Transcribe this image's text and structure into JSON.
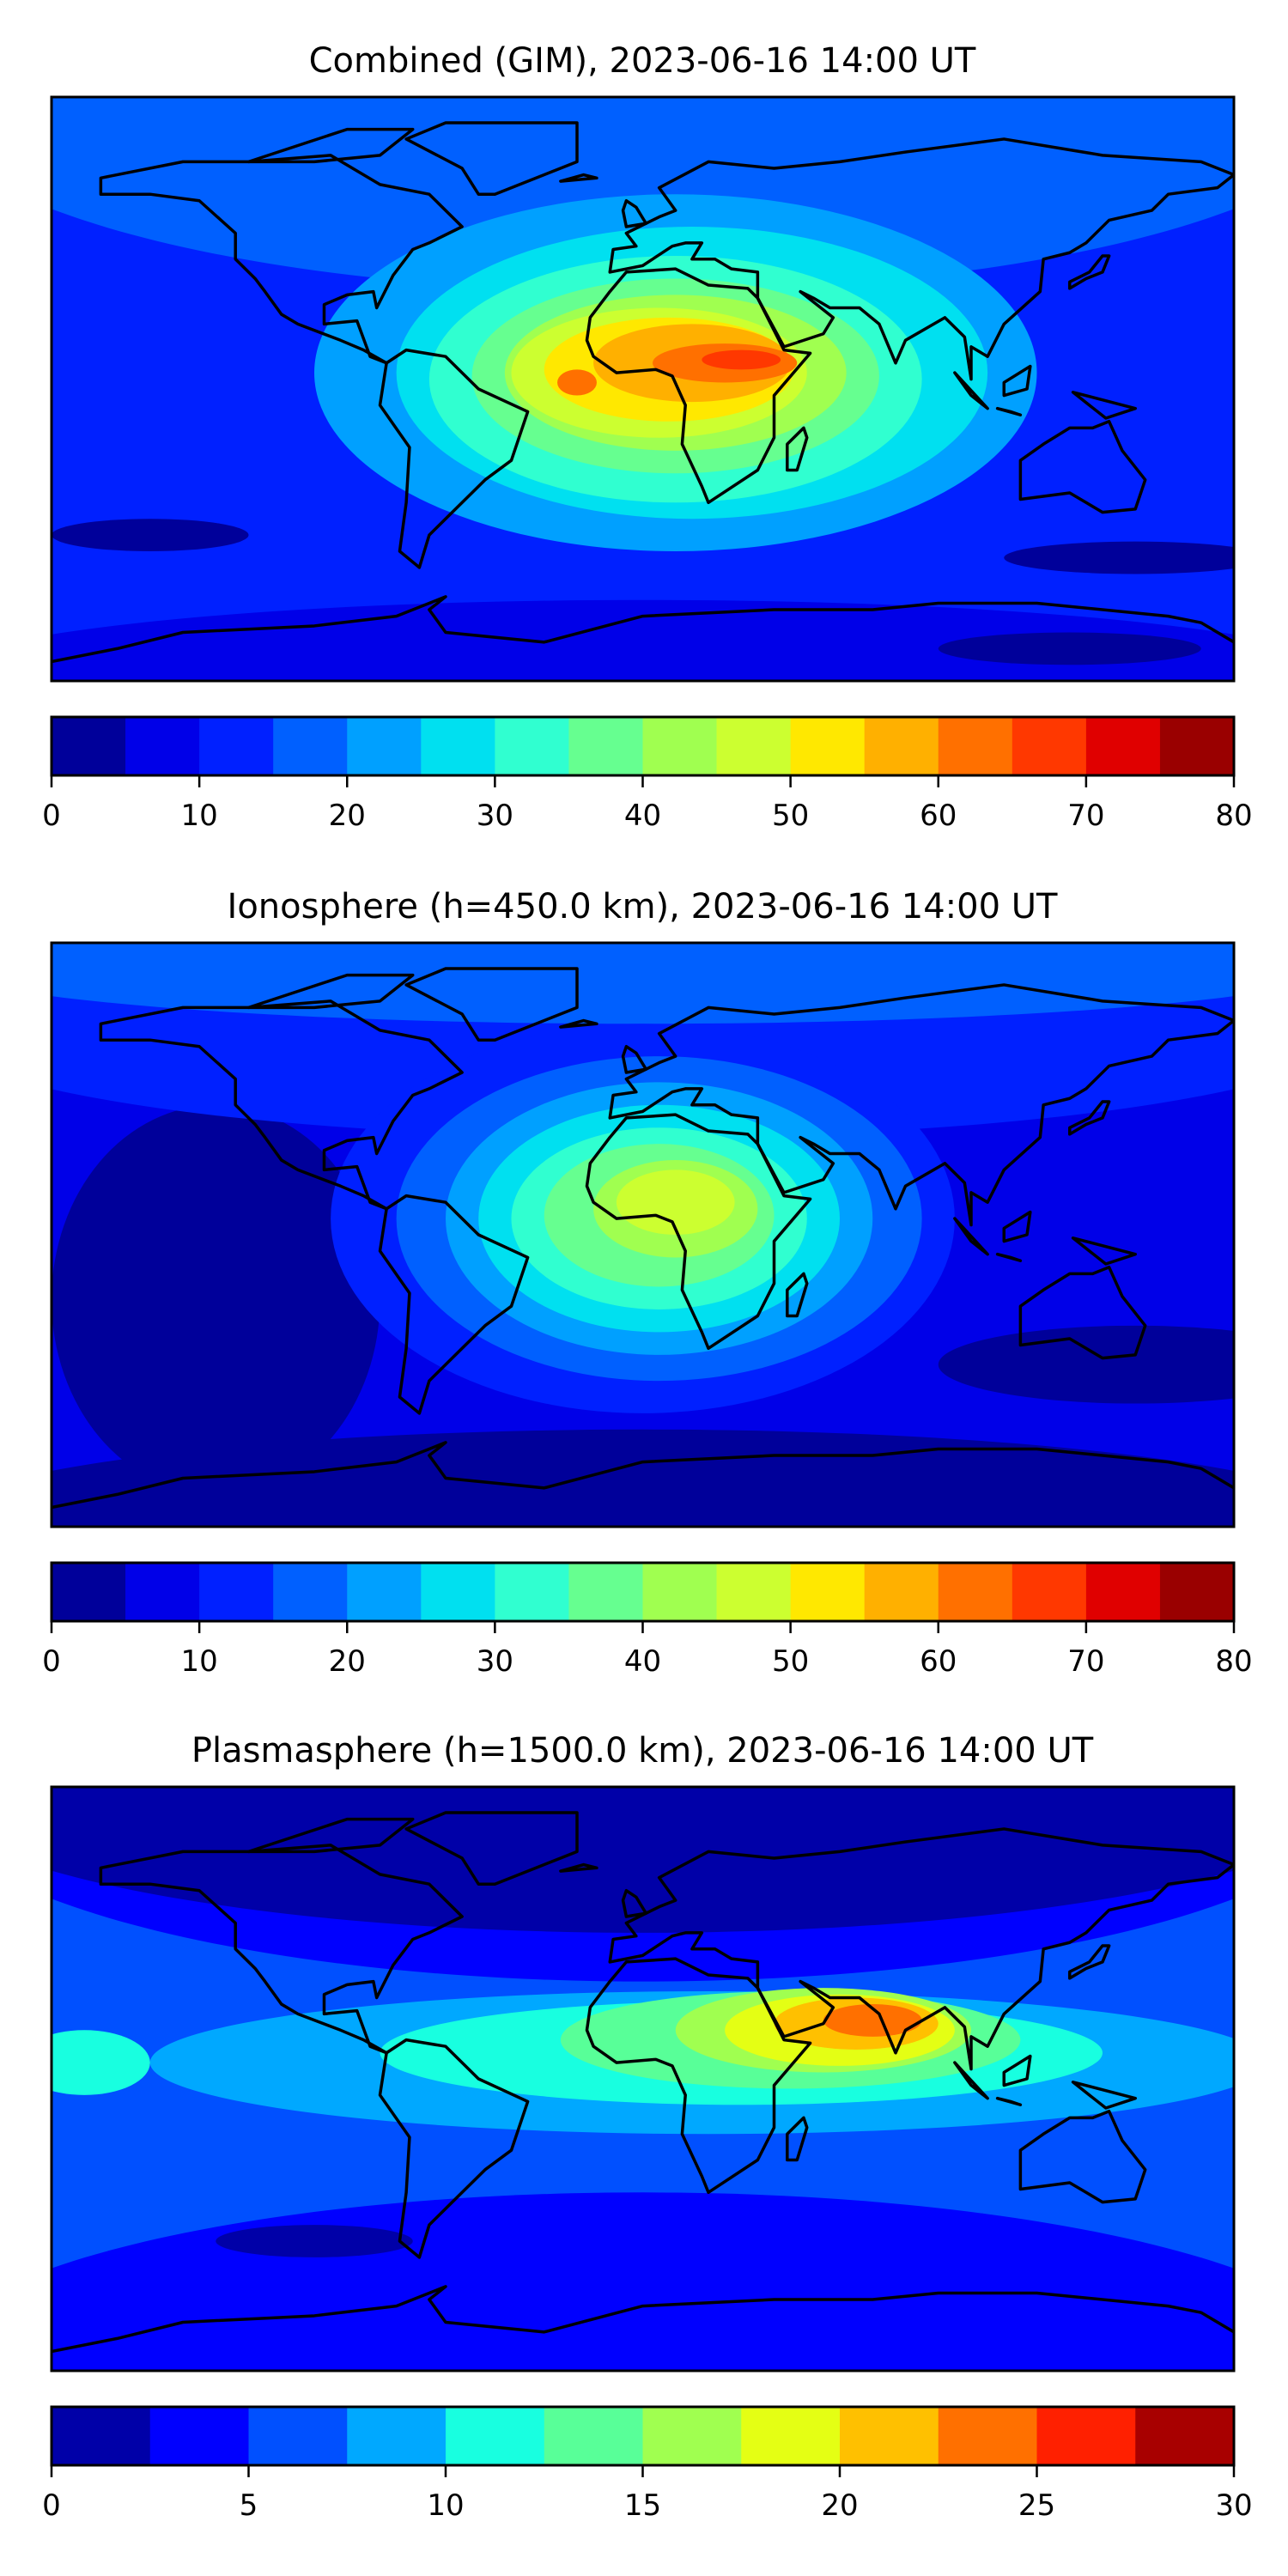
{
  "chart_data": [
    {
      "type": "heatmap",
      "title": "Combined (GIM), 2023-06-16 14:00 UT",
      "colorbar": {
        "levels": [
          0,
          5,
          10,
          15,
          20,
          25,
          30,
          35,
          40,
          45,
          50,
          55,
          60,
          65,
          70,
          75,
          80
        ],
        "colors": [
          "#00009a",
          "#0000e8",
          "#0020ff",
          "#0060ff",
          "#00a0ff",
          "#00e0f0",
          "#30ffd0",
          "#66ff90",
          "#a0ff50",
          "#ccff30",
          "#ffe800",
          "#ffb000",
          "#ff7000",
          "#ff3800",
          "#e00000",
          "#9a0000"
        ],
        "ticks": [
          "0",
          "10",
          "20",
          "30",
          "40",
          "50",
          "60",
          "70",
          "80"
        ],
        "range": [
          0,
          80
        ]
      },
      "peak_region": "tropical Africa (55-70)"
    },
    {
      "type": "heatmap",
      "title": "Ionosphere  (h=450.0 km), 2023-06-16 14:00 UT",
      "colorbar": {
        "levels": [
          0,
          5,
          10,
          15,
          20,
          25,
          30,
          35,
          40,
          45,
          50,
          55,
          60,
          65,
          70,
          75,
          80
        ],
        "colors": [
          "#00009a",
          "#0000e8",
          "#0020ff",
          "#0060ff",
          "#00a0ff",
          "#00e0f0",
          "#30ffd0",
          "#66ff90",
          "#a0ff50",
          "#ccff30",
          "#ffe800",
          "#ffb000",
          "#ff7000",
          "#ff3800",
          "#e00000",
          "#9a0000"
        ],
        "ticks": [
          "0",
          "10",
          "20",
          "30",
          "40",
          "50",
          "60",
          "70",
          "80"
        ],
        "range": [
          0,
          80
        ]
      },
      "peak_region": "Africa (45-50)"
    },
    {
      "type": "heatmap",
      "title": "Plasmasphere (h=1500.0 km), 2023-06-16 14:00 UT",
      "colorbar": {
        "levels": [
          0,
          2.5,
          5,
          7.5,
          10,
          12.5,
          15,
          17.5,
          20,
          22.5,
          25,
          27.5,
          30
        ],
        "colors": [
          "#0000a8",
          "#0000ff",
          "#0050ff",
          "#00a8ff",
          "#18ffe0",
          "#58ff98",
          "#a0ff50",
          "#e4ff14",
          "#ffc000",
          "#ff7000",
          "#ff2000",
          "#a80000"
        ],
        "ticks": [
          "0",
          "5",
          "10",
          "15",
          "20",
          "25",
          "30"
        ],
        "range": [
          0,
          30
        ]
      },
      "peak_region": "Arabian Sea / India (22.5-25)"
    }
  ]
}
